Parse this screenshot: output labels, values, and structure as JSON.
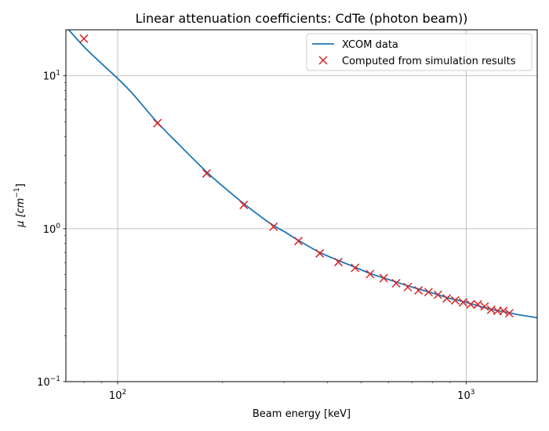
{
  "chart_data": {
    "type": "scatter",
    "title": "Linear attenuation coefficients: CdTe (photon beam))",
    "xlabel": "Beam energy [keV]",
    "ylabel": {
      "base": "μ [cm",
      "sup": "−1",
      "close": "]"
    },
    "xscale": "log",
    "yscale": "log",
    "xlim": [
      71,
      1600
    ],
    "ylim": [
      0.1,
      20
    ],
    "grid": true,
    "legend_position": "upper right",
    "x_ticks": [
      {
        "value": 100,
        "base": "10",
        "exp": "2"
      },
      {
        "value": 1000,
        "base": "10",
        "exp": "3"
      }
    ],
    "y_ticks": [
      {
        "value": 0.1,
        "base": "10",
        "exp": "−1"
      },
      {
        "value": 1,
        "base": "10",
        "exp": "0"
      },
      {
        "value": 10,
        "base": "10",
        "exp": "1"
      }
    ],
    "series": [
      {
        "name": "XCOM data",
        "kind": "line",
        "color": "#1f77b4",
        "x": [
          71,
          80,
          90,
          100,
          110,
          130,
          150,
          180,
          200,
          230,
          260,
          280,
          300,
          330,
          380,
          430,
          480,
          530,
          600,
          700,
          800,
          900,
          1000,
          1100,
          1200,
          1300,
          1400,
          1500,
          1600
        ],
        "y": [
          21,
          15.5,
          12.0,
          9.6,
          7.7,
          4.95,
          3.55,
          2.35,
          1.9,
          1.46,
          1.18,
          1.05,
          0.96,
          0.84,
          0.7,
          0.62,
          0.56,
          0.51,
          0.465,
          0.415,
          0.38,
          0.35,
          0.33,
          0.31,
          0.295,
          0.285,
          0.275,
          0.268,
          0.262
        ]
      },
      {
        "name": "Computed from simulation results",
        "kind": "scatter",
        "color": "#d62728",
        "x": [
          80,
          130,
          180,
          230,
          280,
          330,
          380,
          430,
          480,
          530,
          580,
          630,
          680,
          730,
          780,
          830,
          880,
          930,
          980,
          1030,
          1080,
          1130,
          1180,
          1230,
          1280,
          1330
        ],
        "y": [
          17.5,
          4.9,
          2.3,
          1.43,
          1.03,
          0.83,
          0.69,
          0.605,
          0.555,
          0.505,
          0.475,
          0.44,
          0.415,
          0.395,
          0.385,
          0.37,
          0.35,
          0.34,
          0.33,
          0.32,
          0.32,
          0.31,
          0.295,
          0.29,
          0.29,
          0.28
        ]
      }
    ]
  }
}
